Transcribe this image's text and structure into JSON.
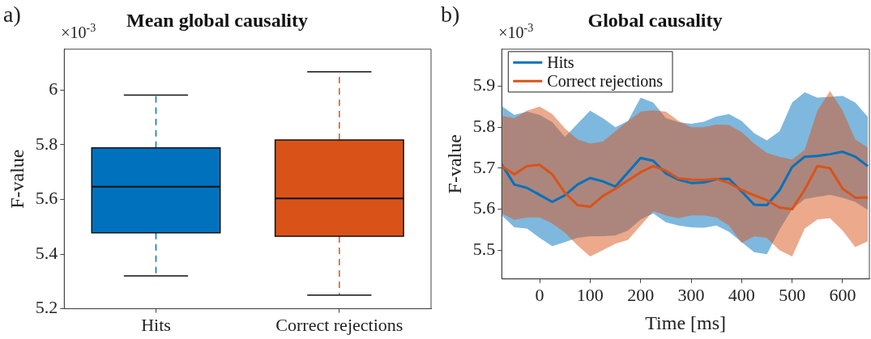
{
  "chart_data": [
    {
      "type": "box",
      "title": "Mean global causality",
      "ylabel": "F-value",
      "categories": [
        "Hits",
        "Correct rejections"
      ],
      "colors": [
        "#0072bd",
        "#d95319"
      ],
      "boxes": [
        {
          "low": 5.32,
          "q1": 5.478,
          "median": 5.647,
          "q3": 5.789,
          "high": 5.982
        },
        {
          "low": 5.25,
          "q1": 5.465,
          "median": 5.604,
          "q3": 5.818,
          "high": 6.067
        }
      ],
      "ylim": [
        5.2,
        6.15
      ],
      "yticks": [
        5.2,
        5.4,
        5.6,
        5.8,
        6
      ],
      "grid": false,
      "annotations": [
        "a)",
        "×10$^{-3}$"
      ]
    },
    {
      "type": "line",
      "title": "Global causality",
      "xlabel": "Time [ms]",
      "ylabel": "F-value",
      "x": [
        -75,
        -50,
        -25,
        0,
        25,
        50,
        75,
        100,
        125,
        150,
        175,
        200,
        225,
        250,
        275,
        300,
        325,
        350,
        375,
        400,
        425,
        450,
        475,
        500,
        525,
        550,
        575,
        600,
        625,
        650
      ],
      "series": [
        {
          "name": "Hits",
          "color": "#0072bd",
          "values": [
            5.709,
            5.66,
            5.652,
            5.635,
            5.618,
            5.634,
            5.66,
            5.676,
            5.668,
            5.655,
            5.69,
            5.725,
            5.718,
            5.687,
            5.672,
            5.664,
            5.665,
            5.673,
            5.674,
            5.643,
            5.611,
            5.61,
            5.646,
            5.703,
            5.728,
            5.73,
            5.734,
            5.74,
            5.728,
            5.705
          ],
          "lower": [
            5.585,
            5.556,
            5.553,
            5.53,
            5.51,
            5.52,
            5.53,
            5.534,
            5.534,
            5.536,
            5.548,
            5.575,
            5.59,
            5.568,
            5.56,
            5.556,
            5.555,
            5.56,
            5.545,
            5.52,
            5.495,
            5.49,
            5.55,
            5.6,
            5.625,
            5.63,
            5.635,
            5.628,
            5.618,
            5.598
          ],
          "upper": [
            5.851,
            5.83,
            5.838,
            5.83,
            5.812,
            5.776,
            5.808,
            5.84,
            5.822,
            5.8,
            5.815,
            5.872,
            5.86,
            5.822,
            5.812,
            5.808,
            5.813,
            5.826,
            5.832,
            5.815,
            5.785,
            5.768,
            5.79,
            5.86,
            5.885,
            5.872,
            5.874,
            5.876,
            5.86,
            5.825
          ]
        },
        {
          "name": "Correct rejections",
          "color": "#d95319",
          "values": [
            5.705,
            5.685,
            5.705,
            5.708,
            5.685,
            5.64,
            5.61,
            5.606,
            5.632,
            5.65,
            5.67,
            5.69,
            5.705,
            5.694,
            5.675,
            5.672,
            5.671,
            5.674,
            5.664,
            5.647,
            5.634,
            5.622,
            5.604,
            5.6,
            5.648,
            5.705,
            5.7,
            5.65,
            5.628,
            5.629
          ],
          "lower": [
            5.59,
            5.574,
            5.58,
            5.58,
            5.565,
            5.543,
            5.512,
            5.485,
            5.5,
            5.516,
            5.525,
            5.56,
            5.595,
            5.585,
            5.578,
            5.585,
            5.585,
            5.58,
            5.56,
            5.518,
            5.534,
            5.53,
            5.5,
            5.485,
            5.553,
            5.575,
            5.578,
            5.548,
            5.508,
            5.522
          ],
          "upper": [
            5.828,
            5.822,
            5.84,
            5.85,
            5.832,
            5.797,
            5.77,
            5.76,
            5.765,
            5.79,
            5.815,
            5.838,
            5.841,
            5.838,
            5.815,
            5.8,
            5.8,
            5.806,
            5.805,
            5.788,
            5.76,
            5.737,
            5.728,
            5.721,
            5.745,
            5.84,
            5.888,
            5.84,
            5.77,
            5.75
          ]
        }
      ],
      "xlim": [
        -75,
        653
      ],
      "xticks": [
        0,
        100,
        200,
        300,
        400,
        500,
        600
      ],
      "ylim": [
        5.43,
        5.99
      ],
      "yticks": [
        5.5,
        5.6,
        5.7,
        5.8,
        5.9
      ],
      "legend": "top left",
      "grid": false,
      "annotations": [
        "b)",
        "×10$^{-3}$"
      ]
    }
  ]
}
